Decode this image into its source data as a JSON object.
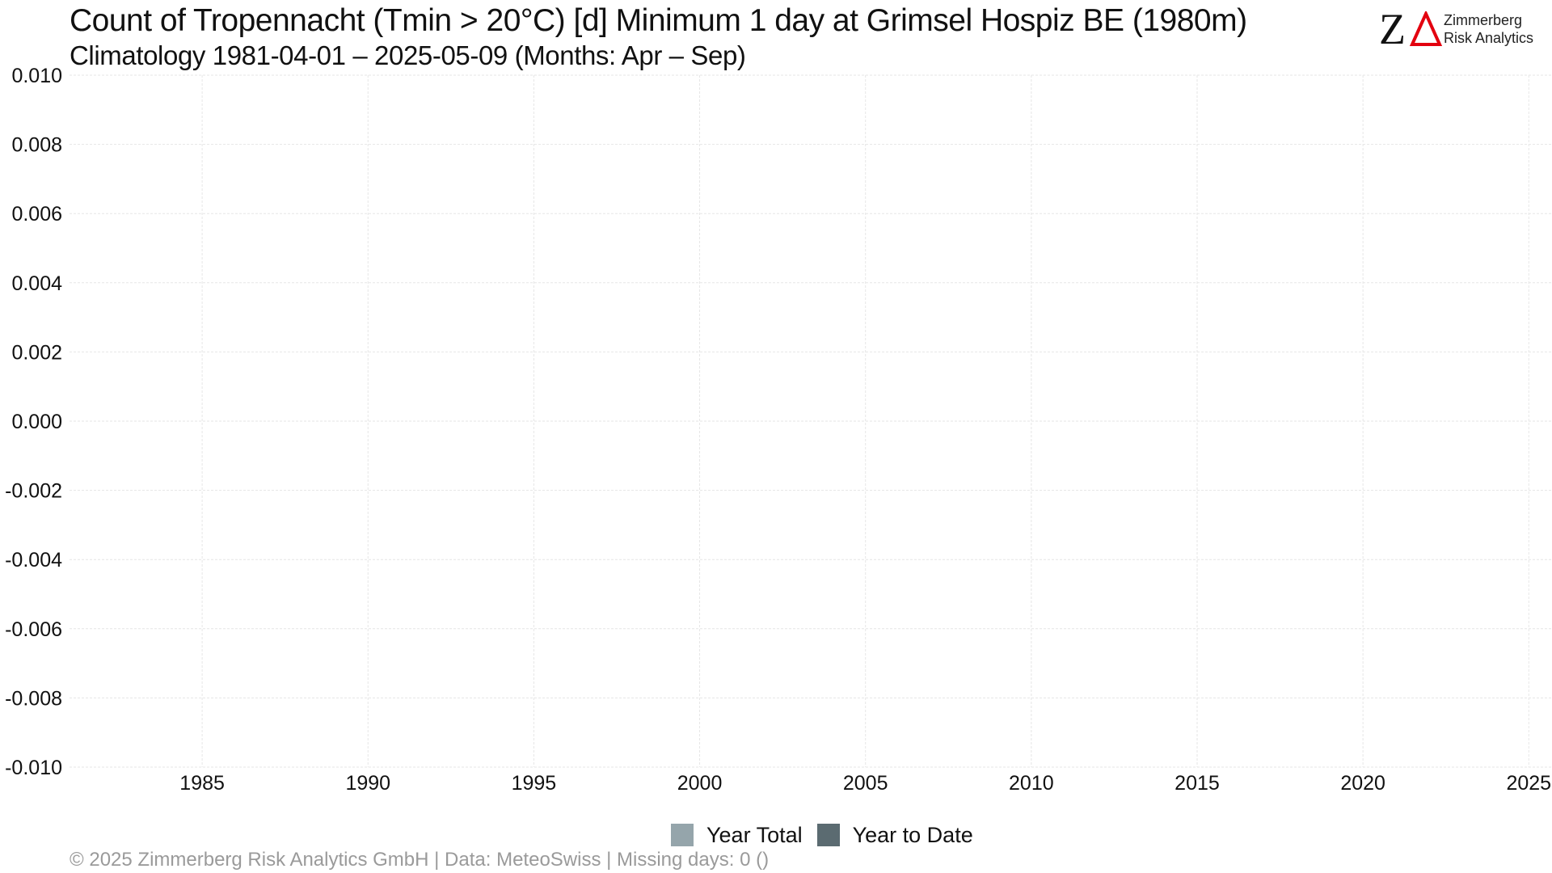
{
  "chart_data": {
    "type": "bar",
    "title": "Count of Tropennacht (Tmin > 20°C) [d] Minimum 1 day at Grimsel Hospiz  BE (1980m)",
    "subtitle": "Climatology 1981-04-01 – 2025-05-09 (Months: Apr – Sep)",
    "xlabel": "",
    "ylabel": "",
    "xlim": [
      1981,
      2025.7
    ],
    "ylim": [
      -0.01,
      0.01
    ],
    "x_ticks": [
      1985,
      1990,
      1995,
      2000,
      2005,
      2010,
      2015,
      2020,
      2025
    ],
    "y_ticks": [
      -0.01,
      -0.008,
      -0.006,
      -0.004,
      -0.002,
      0,
      0.002,
      0.004,
      0.006,
      0.008,
      0.01
    ],
    "y_tick_labels": [
      "-0.010",
      "-0.008",
      "-0.006",
      "-0.004",
      "-0.002",
      "0.000",
      "0.002",
      "0.004",
      "0.006",
      "0.008",
      "0.010"
    ],
    "grid": true,
    "legend_position": "bottom-center",
    "series": [
      {
        "name": "Year Total",
        "color": "#95a5ab",
        "values": []
      },
      {
        "name": "Year to Date",
        "color": "#5b6b71",
        "values": []
      }
    ]
  },
  "logo": {
    "line1": "Zimmerberg",
    "line2": "Risk Analytics",
    "mark_letter": "Z",
    "mark_color": "#e3000f"
  },
  "footer": {
    "text": "©  2025 Zimmerberg Risk Analytics GmbH | Data: MeteoSwiss | Missing days: 0 ()"
  }
}
